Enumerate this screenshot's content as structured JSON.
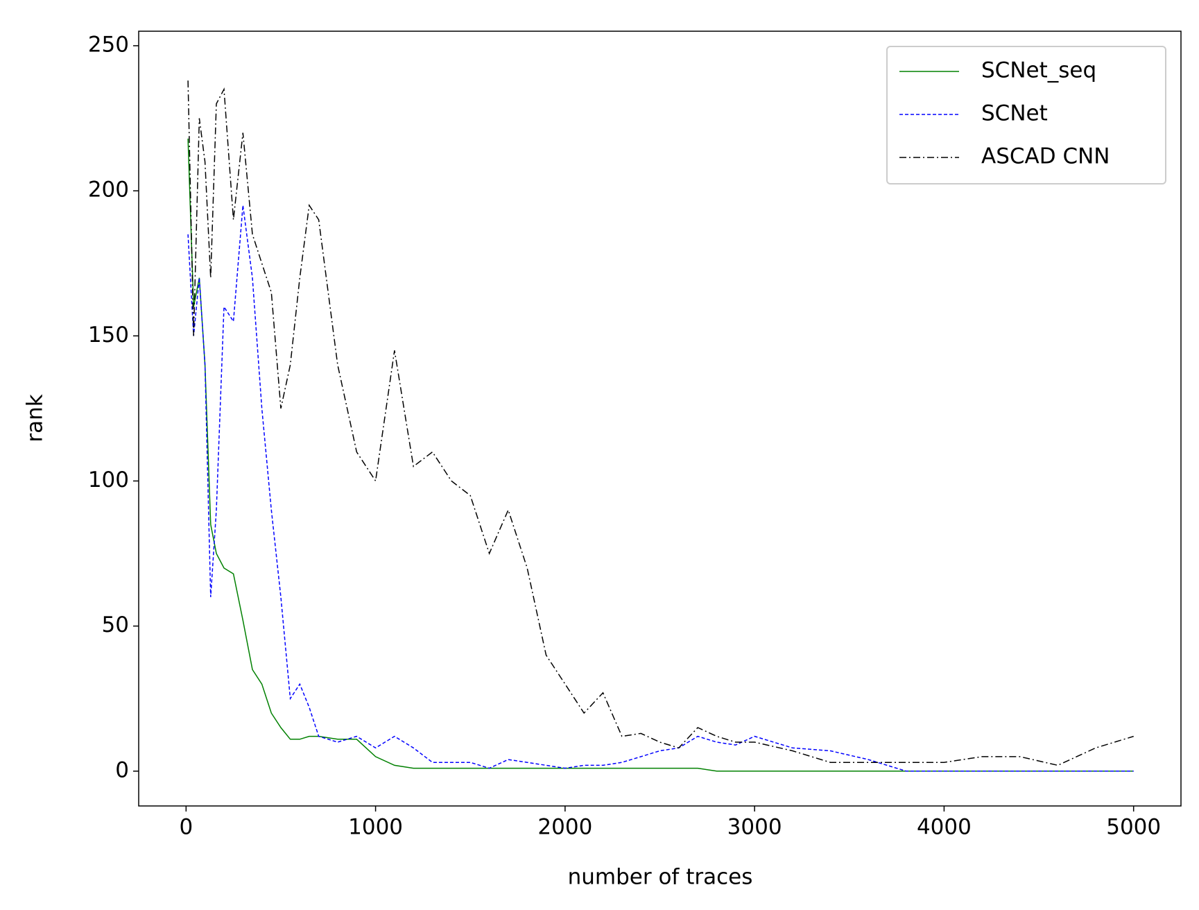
{
  "chart_data": {
    "type": "line",
    "x_label": "number of traces",
    "y_label": "rank",
    "x": [
      10,
      40,
      70,
      100,
      130,
      160,
      200,
      250,
      300,
      350,
      400,
      450,
      500,
      550,
      600,
      650,
      700,
      800,
      900,
      1000,
      1100,
      1200,
      1300,
      1400,
      1500,
      1600,
      1700,
      1800,
      1900,
      2000,
      2100,
      2200,
      2300,
      2400,
      2500,
      2600,
      2700,
      2800,
      2900,
      3000,
      3200,
      3400,
      3600,
      3800,
      4000,
      4200,
      4400,
      4600,
      4800,
      5000
    ],
    "series": [
      {
        "name": "SCNet_seq",
        "color": "#008000",
        "style": "solid",
        "values": [
          218,
          160,
          170,
          140,
          85,
          75,
          70,
          68,
          52,
          35,
          30,
          20,
          15,
          11,
          11,
          12,
          12,
          11,
          11,
          5,
          2,
          1,
          1,
          1,
          1,
          1,
          1,
          1,
          1,
          1,
          1,
          1,
          1,
          1,
          1,
          1,
          1,
          0,
          0,
          0,
          0,
          0,
          0,
          0,
          0,
          0,
          0,
          0,
          0,
          0
        ]
      },
      {
        "name": "SCNet",
        "color": "#0000ff",
        "style": "dashed",
        "values": [
          185,
          150,
          170,
          140,
          60,
          90,
          160,
          155,
          195,
          170,
          125,
          90,
          60,
          25,
          30,
          22,
          12,
          10,
          12,
          8,
          12,
          8,
          3,
          3,
          3,
          1,
          4,
          3,
          2,
          1,
          2,
          2,
          3,
          5,
          7,
          8,
          12,
          10,
          9,
          12,
          8,
          7,
          4,
          0,
          0,
          0,
          0,
          0,
          0,
          0
        ]
      },
      {
        "name": "ASCAD CNN",
        "color": "#000000",
        "style": "dashdot",
        "values": [
          238,
          150,
          225,
          210,
          170,
          230,
          235,
          190,
          220,
          185,
          175,
          165,
          125,
          140,
          170,
          195,
          190,
          140,
          110,
          100,
          145,
          105,
          110,
          100,
          95,
          75,
          90,
          70,
          40,
          30,
          20,
          27,
          12,
          13,
          10,
          8,
          15,
          12,
          10,
          10,
          7,
          3,
          3,
          3,
          3,
          5,
          5,
          2,
          8,
          12
        ]
      }
    ],
    "xlim": [
      -250,
      5250
    ],
    "ylim": [
      -12,
      255
    ],
    "xticks": [
      0,
      1000,
      2000,
      3000,
      4000,
      5000
    ],
    "yticks": [
      0,
      50,
      100,
      150,
      200,
      250
    ],
    "legend": "upper right"
  }
}
